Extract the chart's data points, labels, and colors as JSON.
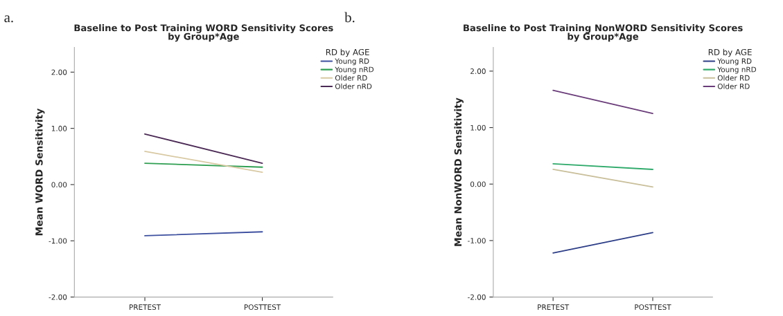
{
  "chart_data": [
    {
      "type": "line",
      "title": "Baseline to Post Training WORD Sensitivity Scores\nby Group*Age",
      "ylabel": "Mean WORD Sensitivity",
      "legend_title": "RD by AGE",
      "annotations": [
        "a."
      ],
      "categories": [
        "PRETEST",
        "POSTTEST"
      ],
      "ylim": [
        -2,
        2.44
      ],
      "yticks": [
        {
          "value": -2,
          "label": "-2.00"
        },
        {
          "value": -1,
          "label": "-1.00"
        },
        {
          "value": 0,
          "label": "0.00"
        },
        {
          "value": 1,
          "label": "1.00"
        },
        {
          "value": 2,
          "label": "2.00"
        }
      ],
      "grid": false,
      "legend": "top right",
      "marker": "none",
      "line_style": "solid",
      "series": [
        {
          "name": "Young RD",
          "color": "#3d4f9f",
          "values": [
            -0.91,
            -0.84
          ]
        },
        {
          "name": "Young nRD",
          "color": "#2e9e50",
          "values": [
            0.38,
            0.31
          ]
        },
        {
          "name": "Older RD",
          "color": "#d9c9a3",
          "values": [
            0.59,
            0.22
          ]
        },
        {
          "name": "Older nRD",
          "color": "#4b2a55",
          "values": [
            0.9,
            0.38
          ]
        }
      ]
    },
    {
      "type": "line",
      "title": "Baseline to Post Training NonWORD Sensitivity Scores\nby Group*Age",
      "ylabel": "Mean NonWORD Sensitivity",
      "legend_title": "RD by AGE",
      "annotations": [
        "b."
      ],
      "categories": [
        "PRETEST",
        "POSTTEST"
      ],
      "ylim": [
        -2,
        2.42
      ],
      "yticks": [
        {
          "value": -2,
          "label": "-2.00"
        },
        {
          "value": -1,
          "label": "-1.00"
        },
        {
          "value": 0,
          "label": "0.00"
        },
        {
          "value": 1,
          "label": "1.00"
        },
        {
          "value": 2,
          "label": "2.00"
        }
      ],
      "grid": false,
      "legend": "top right",
      "marker": "none",
      "line_style": "solid",
      "series": [
        {
          "name": "Young RD",
          "color": "#2c3d87",
          "values": [
            -1.22,
            -0.86
          ]
        },
        {
          "name": "Young nRD",
          "color": "#2faa6a",
          "values": [
            0.36,
            0.26
          ]
        },
        {
          "name": "Older RD",
          "color": "#c9bf9a",
          "values": [
            0.26,
            -0.05
          ]
        },
        {
          "name": "Older RD",
          "color": "#6a3c7a",
          "values": [
            1.66,
            1.25
          ]
        }
      ]
    }
  ]
}
